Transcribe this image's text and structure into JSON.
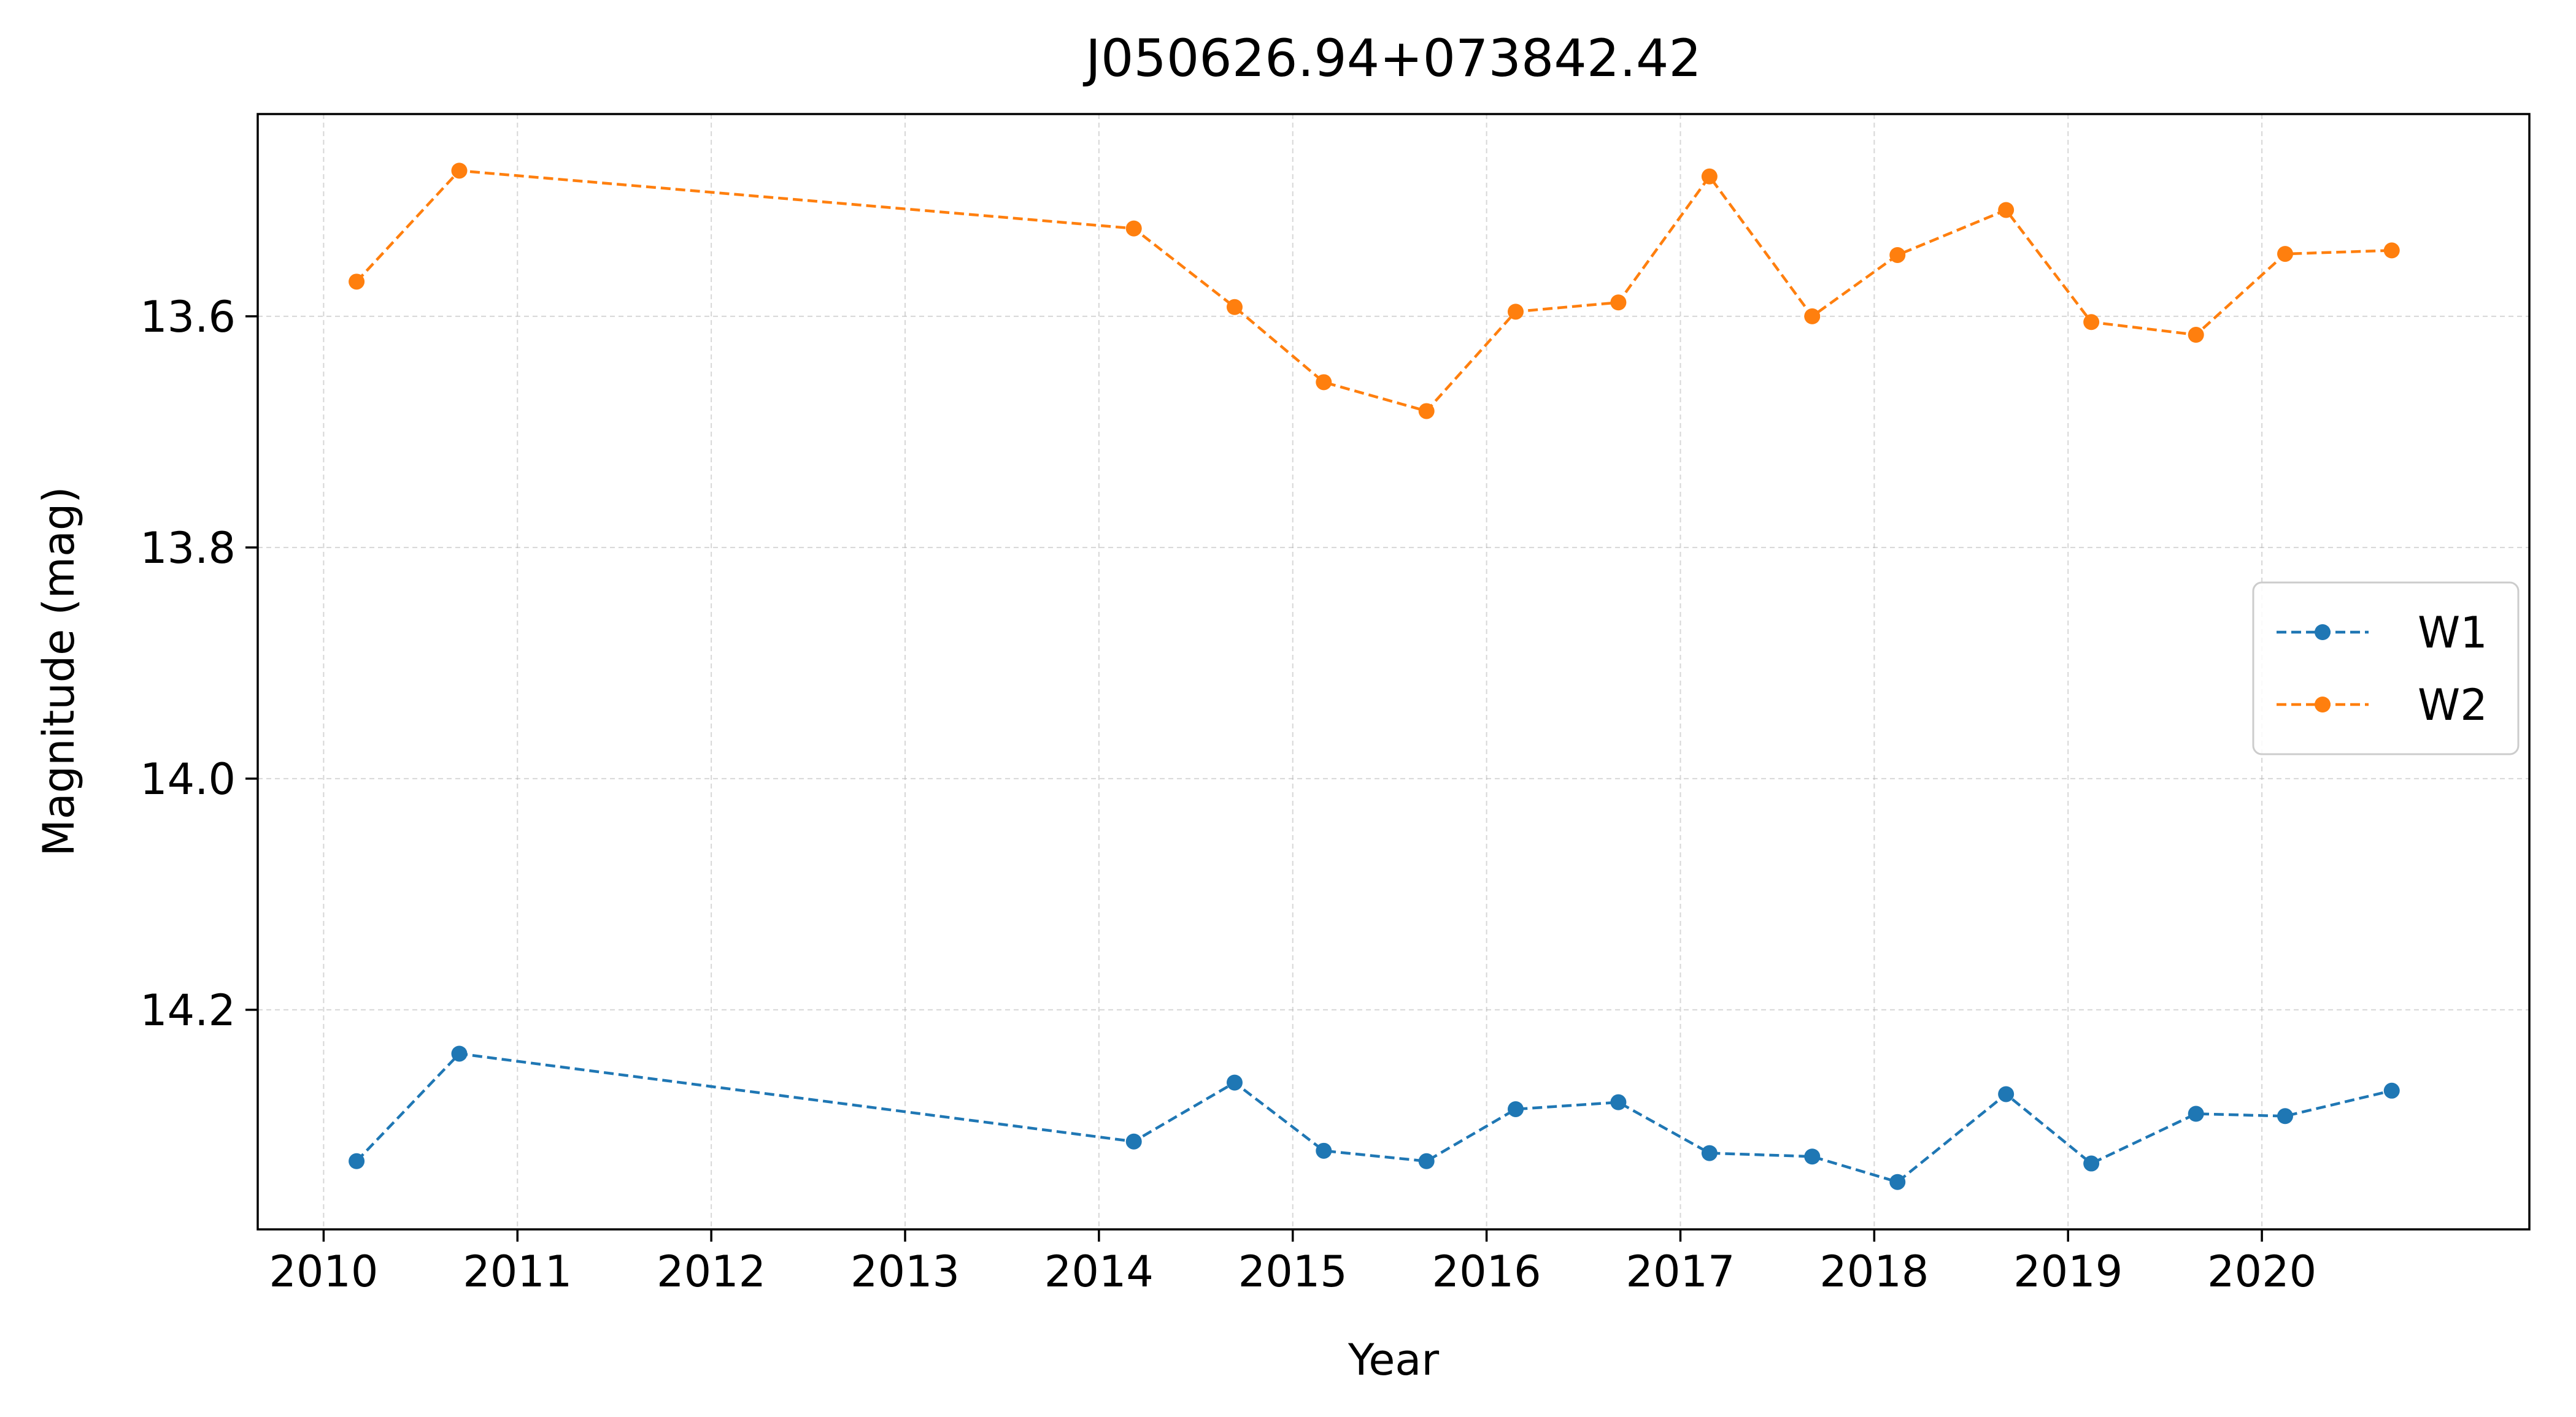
{
  "chart_data": {
    "type": "line",
    "title": "J050626.94+073842.42",
    "xlabel": "Year",
    "ylabel": "Magnitude (mag)",
    "xlim": [
      2009.66,
      2021.38
    ],
    "ylim": [
      14.39,
      13.425
    ],
    "y_inverted": true,
    "grid": true,
    "legend_position": "center-right",
    "xticks": [
      "2010",
      "2011",
      "2012",
      "2013",
      "2014",
      "2015",
      "2016",
      "2017",
      "2018",
      "2019",
      "2020"
    ],
    "yticks": [
      "13.6",
      "13.8",
      "14.0",
      "14.2"
    ],
    "series": [
      {
        "name": "W1",
        "color": "#1f77b4",
        "x": [
          2010.17,
          2010.7,
          2014.18,
          2014.7,
          2015.16,
          2015.69,
          2016.15,
          2016.68,
          2017.15,
          2017.68,
          2018.12,
          2018.68,
          2019.12,
          2019.66,
          2020.12,
          2020.67
        ],
        "y": [
          14.331,
          14.238,
          14.314,
          14.263,
          14.322,
          14.331,
          14.286,
          14.28,
          14.324,
          14.327,
          14.349,
          14.273,
          14.333,
          14.29,
          14.292,
          14.27
        ]
      },
      {
        "name": "W2",
        "color": "#ff7f0e",
        "x": [
          2010.17,
          2010.7,
          2014.18,
          2014.7,
          2015.16,
          2015.69,
          2016.15,
          2016.68,
          2017.15,
          2017.68,
          2018.12,
          2018.68,
          2019.12,
          2019.66,
          2020.12,
          2020.67
        ],
        "y": [
          13.57,
          13.474,
          13.524,
          13.592,
          13.657,
          13.682,
          13.596,
          13.588,
          13.479,
          13.6,
          13.547,
          13.508,
          13.605,
          13.616,
          13.546,
          13.543
        ]
      }
    ]
  }
}
